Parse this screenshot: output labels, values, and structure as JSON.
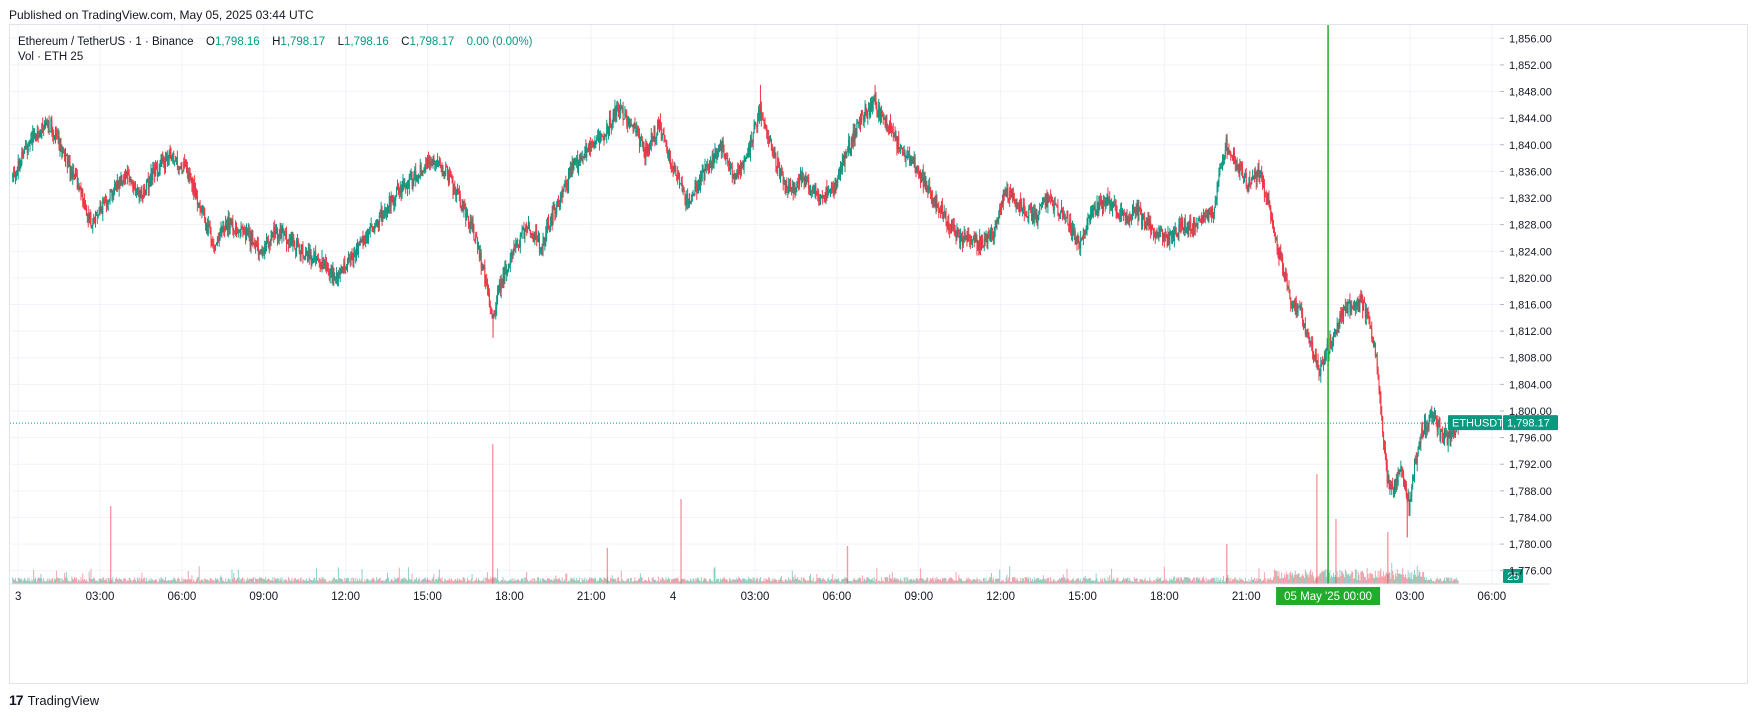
{
  "header": {
    "published": "Published on TradingView.com, May 05, 2025 03:44 UTC"
  },
  "legend": {
    "symbol": "Ethereum / TetherUS · 1 · Binance",
    "o_label": "O",
    "o_value": "1,798.16",
    "h_label": "H",
    "h_value": "1,798.17",
    "l_label": "L",
    "l_value": "1,798.16",
    "c_label": "C",
    "c_value": "1,798.17",
    "change": "0.00 (0.00%)",
    "vol_label": "Vol · ETH",
    "vol_value": "25"
  },
  "footer": {
    "brand": "TradingView",
    "logo": "17"
  },
  "colors": {
    "up": "#089981",
    "down": "#f23645",
    "crosshair": "#22ab2c",
    "grid": "#f0f3fa",
    "axis_text": "#131722"
  },
  "chart_data": {
    "type": "candlestick",
    "title": "Ethereum / TetherUS · 1 · Binance",
    "symbol": "ETHUSDT",
    "last_price": 1798.17,
    "last_price_label": "1,798.17",
    "volume_last_label": "25",
    "crosshair_label": "05 May '25   00:00",
    "ylim": [
      1774,
      1858
    ],
    "y_ticks": [
      1776,
      1780,
      1784,
      1788,
      1792,
      1796,
      1800,
      1804,
      1808,
      1812,
      1816,
      1820,
      1824,
      1828,
      1832,
      1836,
      1840,
      1844,
      1848,
      1852,
      1856
    ],
    "y_tick_labels": [
      "1,776.00",
      "1,780.00",
      "1,784.00",
      "1,788.00",
      "1,792.00",
      "1,796.00",
      "1,800.00",
      "1,804.00",
      "1,808.00",
      "1,812.00",
      "1,816.00",
      "1,820.00",
      "1,824.00",
      "1,828.00",
      "1,832.00",
      "1,836.00",
      "1,840.00",
      "1,844.00",
      "1,848.00",
      "1,852.00",
      "1,856.00"
    ],
    "x_unit": "hours since May 3 00:00 UTC",
    "xlim": [
      -0.3,
      54.3
    ],
    "x_ticks": [
      0,
      3,
      6,
      9,
      12,
      15,
      18,
      21,
      24,
      27,
      30,
      33,
      36,
      39,
      42,
      45,
      48,
      51,
      54
    ],
    "x_tick_labels": [
      "3",
      "03:00",
      "06:00",
      "09:00",
      "12:00",
      "15:00",
      "18:00",
      "21:00",
      "4",
      "03:00",
      "06:00",
      "09:00",
      "12:00",
      "15:00",
      "18:00",
      "21:00",
      "",
      "03:00",
      "06:00"
    ],
    "crosshair_x": 48,
    "price_path": [
      [
        -0.2,
        1835
      ],
      [
        0.5,
        1841
      ],
      [
        1.2,
        1843
      ],
      [
        1.8,
        1838
      ],
      [
        2.4,
        1832
      ],
      [
        2.7,
        1828
      ],
      [
        3.3,
        1832
      ],
      [
        4.0,
        1836
      ],
      [
        4.5,
        1832
      ],
      [
        5.0,
        1836
      ],
      [
        5.6,
        1838
      ],
      [
        6.2,
        1836
      ],
      [
        6.7,
        1831
      ],
      [
        7.2,
        1825
      ],
      [
        7.7,
        1828
      ],
      [
        8.3,
        1827
      ],
      [
        8.9,
        1824
      ],
      [
        9.5,
        1827
      ],
      [
        10.2,
        1825
      ],
      [
        10.8,
        1823
      ],
      [
        11.3,
        1822
      ],
      [
        11.7,
        1820
      ],
      [
        12.2,
        1823
      ],
      [
        12.8,
        1826
      ],
      [
        13.3,
        1829
      ],
      [
        13.9,
        1833
      ],
      [
        14.5,
        1835
      ],
      [
        15.2,
        1838
      ],
      [
        15.7,
        1836
      ],
      [
        16.3,
        1831
      ],
      [
        16.8,
        1826
      ],
      [
        17.2,
        1819
      ],
      [
        17.4,
        1814
      ],
      [
        17.7,
        1819
      ],
      [
        18.1,
        1823
      ],
      [
        18.7,
        1828
      ],
      [
        19.2,
        1825
      ],
      [
        19.7,
        1830
      ],
      [
        20.3,
        1836
      ],
      [
        21.0,
        1840
      ],
      [
        21.6,
        1842
      ],
      [
        22.0,
        1846
      ],
      [
        22.5,
        1843
      ],
      [
        23.0,
        1839
      ],
      [
        23.5,
        1843
      ],
      [
        23.9,
        1838
      ],
      [
        24.3,
        1834
      ],
      [
        24.6,
        1831
      ],
      [
        25.2,
        1836
      ],
      [
        25.8,
        1840
      ],
      [
        26.3,
        1835
      ],
      [
        26.8,
        1839
      ],
      [
        27.2,
        1845
      ],
      [
        27.7,
        1839
      ],
      [
        28.2,
        1833
      ],
      [
        28.8,
        1835
      ],
      [
        29.4,
        1832
      ],
      [
        29.9,
        1833
      ],
      [
        30.4,
        1839
      ],
      [
        30.9,
        1844
      ],
      [
        31.4,
        1846
      ],
      [
        31.9,
        1843
      ],
      [
        32.4,
        1839
      ],
      [
        32.9,
        1837
      ],
      [
        33.4,
        1833
      ],
      [
        34.0,
        1829
      ],
      [
        34.6,
        1826
      ],
      [
        35.2,
        1825
      ],
      [
        35.8,
        1827
      ],
      [
        36.2,
        1833
      ],
      [
        36.7,
        1831
      ],
      [
        37.3,
        1829
      ],
      [
        37.8,
        1832
      ],
      [
        38.4,
        1829
      ],
      [
        38.9,
        1825
      ],
      [
        39.4,
        1830
      ],
      [
        40.0,
        1832
      ],
      [
        40.5,
        1829
      ],
      [
        41.0,
        1830
      ],
      [
        41.6,
        1827
      ],
      [
        42.2,
        1826
      ],
      [
        42.8,
        1828
      ],
      [
        43.3,
        1828
      ],
      [
        43.8,
        1830
      ],
      [
        44.3,
        1840
      ],
      [
        44.7,
        1837
      ],
      [
        45.1,
        1834
      ],
      [
        45.5,
        1836
      ],
      [
        45.8,
        1832
      ],
      [
        46.1,
        1826
      ],
      [
        46.4,
        1821
      ],
      [
        46.7,
        1816
      ],
      [
        47.0,
        1815
      ],
      [
        47.4,
        1810
      ],
      [
        47.7,
        1806
      ],
      [
        48.0,
        1809
      ],
      [
        48.3,
        1812
      ],
      [
        48.6,
        1815
      ],
      [
        48.9,
        1816
      ],
      [
        49.2,
        1817
      ],
      [
        49.5,
        1814
      ],
      [
        49.8,
        1808
      ],
      [
        50.0,
        1798
      ],
      [
        50.2,
        1790
      ],
      [
        50.4,
        1788
      ],
      [
        50.7,
        1791
      ],
      [
        51.0,
        1786
      ],
      [
        51.2,
        1792
      ],
      [
        51.5,
        1797
      ],
      [
        51.9,
        1800
      ],
      [
        52.2,
        1796
      ],
      [
        52.5,
        1796
      ],
      [
        52.8,
        1798
      ]
    ],
    "annotation_extremes": [
      [
        17.4,
        1811
      ],
      [
        27.2,
        1849
      ],
      [
        31.4,
        1849
      ],
      [
        50.9,
        1781
      ]
    ]
  }
}
